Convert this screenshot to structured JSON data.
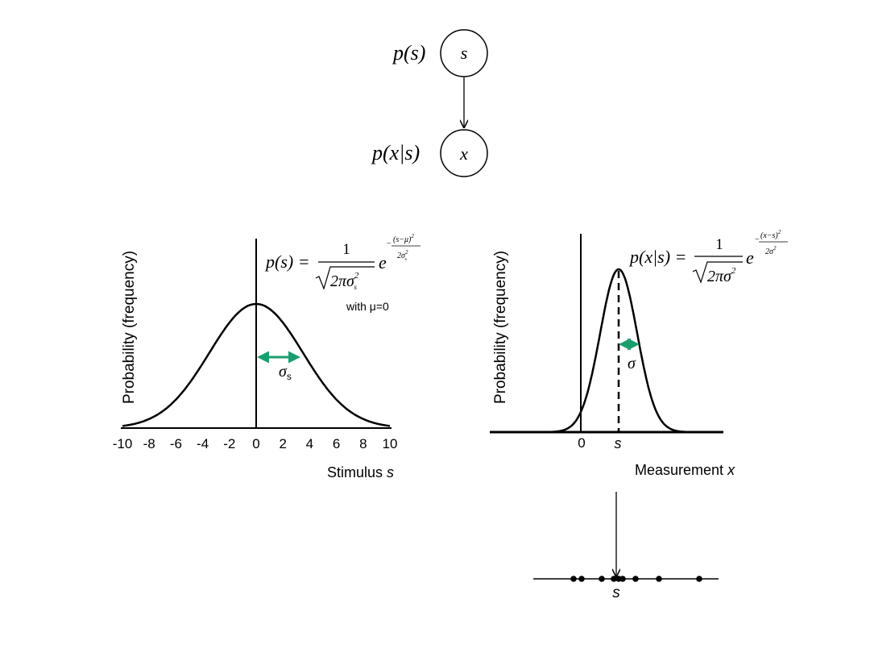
{
  "graph": {
    "node_top_label": "s",
    "node_bottom_label": "x",
    "prior_label": "p(s)",
    "likelihood_label": "p(x|s)"
  },
  "left_plot": {
    "ylabel": "Probability (frequency)",
    "xlabel": "Stimulus ",
    "xlabel_var": "s",
    "xticks": [
      "-10",
      "-8",
      "-6",
      "-4",
      "-2",
      "0",
      "2",
      "4",
      "6",
      "8",
      "10"
    ],
    "formula": {
      "lhs": "p(s) =",
      "numerator": "1",
      "denominator": "2πσ",
      "denominator_sub": "s",
      "denominator_sup": "2",
      "base": "e",
      "exponent_num": "(s−μ)",
      "exponent_num_sup": "2",
      "exponent_den": "2σ",
      "exponent_den_sub": "s",
      "exponent_den_sup": "2",
      "minus": "−"
    },
    "note": "with μ=0",
    "sigma_label": "σ",
    "sigma_sub": "s",
    "accent_color": "#1a9e6e"
  },
  "right_plot": {
    "ylabel": "Probability (frequency)",
    "xlabel": "Measurement  ",
    "xlabel_var": "x",
    "tick_zero": "0",
    "tick_s": "s",
    "formula": {
      "lhs": "p(x|s) =",
      "numerator": "1",
      "denominator": "2πσ",
      "denominator_sup": "2",
      "base": "e",
      "exponent_num": "(x−s)",
      "exponent_num_sup": "2",
      "exponent_den": "2σ",
      "exponent_den_sup": "2",
      "minus": "−"
    },
    "sigma_label": "σ",
    "accent_color": "#1a9e6e"
  },
  "samples": {
    "axis_label": "s"
  }
}
